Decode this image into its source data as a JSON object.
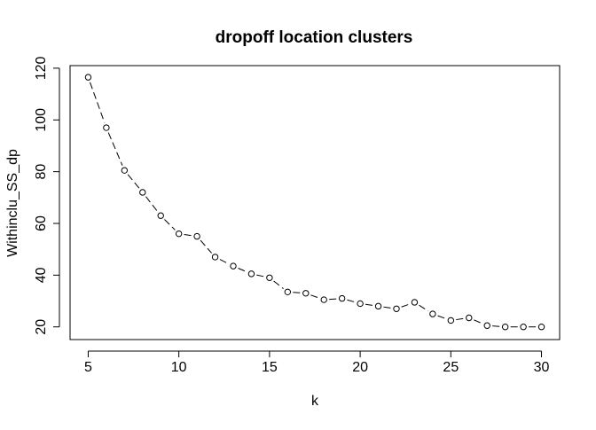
{
  "chart_data": {
    "type": "line",
    "title": "dropoff location clusters",
    "xlabel": "k",
    "ylabel": "Withinclu_SS_dp",
    "x": [
      5,
      6,
      7,
      8,
      9,
      10,
      11,
      12,
      13,
      14,
      15,
      16,
      17,
      18,
      19,
      20,
      21,
      22,
      23,
      24,
      25,
      26,
      27,
      28,
      29,
      30
    ],
    "series": [
      {
        "values": [
          116.5,
          97,
          80.5,
          72,
          63,
          56,
          55,
          47,
          43.5,
          40.5,
          39,
          33.5,
          33,
          30.5,
          31,
          29,
          28,
          27,
          29.5,
          25,
          22.5,
          23.5,
          20.5,
          20,
          20,
          20
        ]
      }
    ],
    "xlim": [
      4,
      31
    ],
    "ylim": [
      15.1,
      121
    ],
    "xticks": [
      "5",
      "10",
      "15",
      "20",
      "25",
      "30"
    ],
    "yticks": [
      "20",
      "40",
      "60",
      "80",
      "100",
      "120"
    ],
    "grid": false,
    "legend": "none",
    "line_style": "dashed",
    "marker": "open-circle",
    "color": "#000000"
  }
}
